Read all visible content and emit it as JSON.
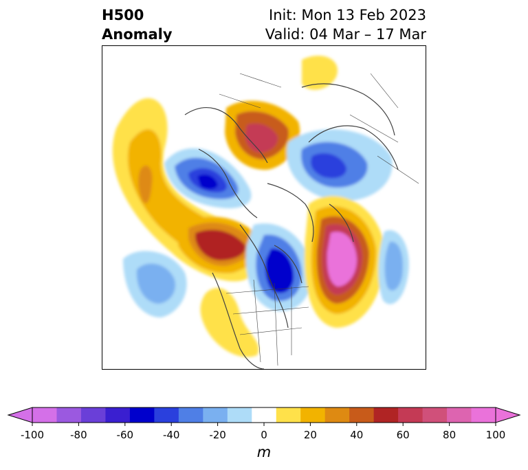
{
  "header": {
    "title_line1": "H500",
    "title_line2": "Anomaly",
    "init": "Init: Mon 13 Feb 2023",
    "valid": "Valid: 04 Mar – 17 Mar"
  },
  "colorbar": {
    "unit": "m",
    "min": -100,
    "max": 100,
    "tick_labels": [
      "-100",
      "-80",
      "-60",
      "-40",
      "-20",
      "0",
      "20",
      "40",
      "60",
      "80",
      "100"
    ],
    "levels": [
      -100,
      -90,
      -80,
      -70,
      -60,
      -50,
      -40,
      -30,
      -20,
      -10,
      10,
      20,
      30,
      40,
      50,
      60,
      70,
      80,
      90,
      100
    ],
    "colors": [
      "#d470e8",
      "#9b59e0",
      "#6a3fd8",
      "#3a1fd0",
      "#0000cc",
      "#2a40dd",
      "#4f7fe6",
      "#7ab0f0",
      "#aedcf8",
      "#ffffff",
      "#ffe14a",
      "#f2b300",
      "#de8a12",
      "#c85b1a",
      "#b02424",
      "#c43a55",
      "#d0507a",
      "#dd64b0",
      "#ea72da"
    ],
    "extend_low_color": "#d470e8",
    "extend_high_color": "#ea72da"
  },
  "map": {
    "projection": "polar stereographic (North Pole)",
    "coastline_color": "#404040"
  }
}
